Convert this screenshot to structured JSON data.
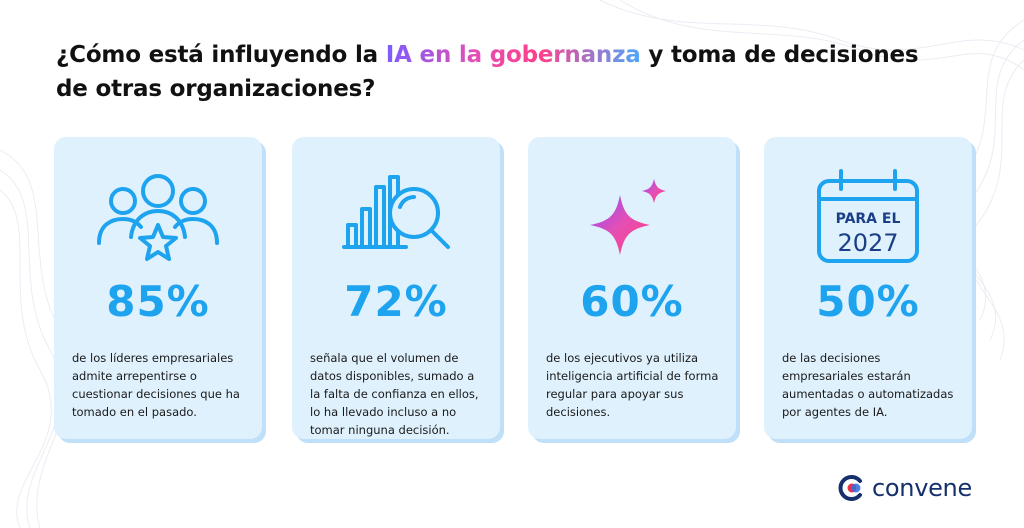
{
  "title": {
    "part1": "¿Cómo está influyendo la ",
    "highlight": "IA en la gobernanza",
    "part2": " y toma de decisiones de otras organizaciones?"
  },
  "cards": [
    {
      "icon": "people-star-icon",
      "stat": "85%",
      "text": "de los líderes empresariales admite arrepentirse o cuestionar decisiones que ha tomado en el pasado."
    },
    {
      "icon": "chart-magnifier-icon",
      "stat": "72%",
      "text": "señala que el volumen de datos disponibles, sumado a la falta de confianza en ellos, lo ha llevado incluso a no tomar ninguna decisión."
    },
    {
      "icon": "sparkle-icon",
      "stat": "60%",
      "text": "de los ejecutivos ya utiliza inteligencia artificial de forma regular para apoyar sus decisiones."
    },
    {
      "icon": "calendar-icon",
      "stat": "50%",
      "text": "de las decisiones empresariales estarán aumentadas o automatizadas por agentes de IA.",
      "calendar_label": "PARA EL",
      "calendar_year": "2027"
    }
  ],
  "logo": {
    "text": "convene"
  },
  "colors": {
    "accent": "#1ea3ef",
    "card_bg": "#dff1fd",
    "logo": "#16306b"
  }
}
